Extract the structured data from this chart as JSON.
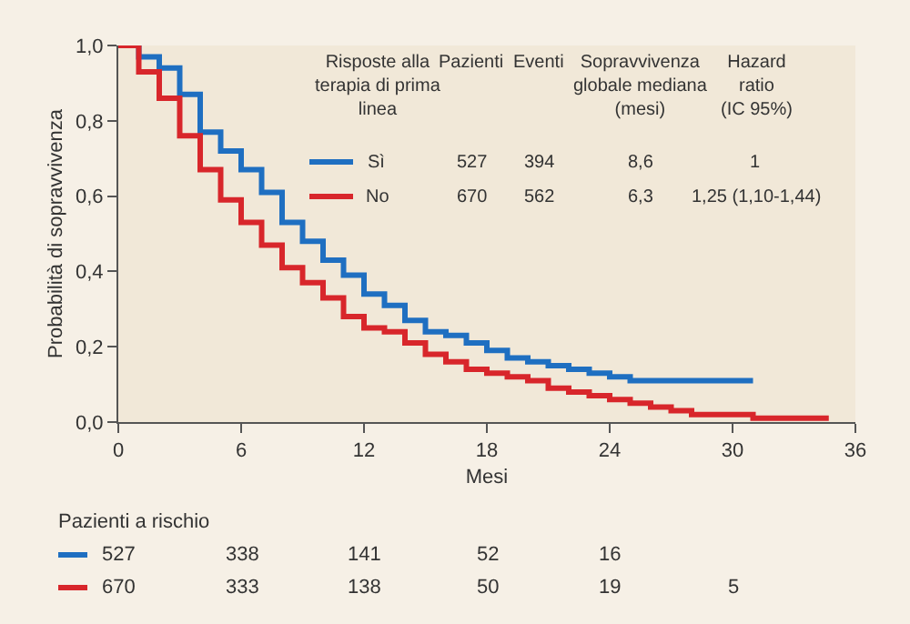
{
  "chart_data": {
    "type": "step",
    "xlabel": "Mesi",
    "ylabel": "Probabilità di sopravvivenza",
    "x": [
      0,
      1,
      2,
      3,
      4,
      5,
      6,
      7,
      8,
      9,
      10,
      11,
      12,
      13,
      14,
      15,
      16,
      17,
      18,
      19,
      20,
      21,
      22,
      23,
      24,
      25,
      26,
      27,
      28,
      30,
      31,
      34.7
    ],
    "series": [
      {
        "name": "Sì",
        "color": "#1f6fc1",
        "values": [
          1.0,
          0.97,
          0.94,
          0.87,
          0.77,
          0.72,
          0.67,
          0.61,
          0.53,
          0.48,
          0.43,
          0.39,
          0.34,
          0.31,
          0.27,
          0.24,
          0.23,
          0.21,
          0.19,
          0.17,
          0.16,
          0.15,
          0.14,
          0.13,
          0.12,
          0.11,
          0.11,
          0.11,
          0.11,
          0.11,
          0.11,
          null
        ]
      },
      {
        "name": "No",
        "color": "#d8262b",
        "values": [
          1.0,
          0.93,
          0.86,
          0.76,
          0.67,
          0.59,
          0.53,
          0.47,
          0.41,
          0.37,
          0.33,
          0.28,
          0.25,
          0.24,
          0.21,
          0.18,
          0.16,
          0.14,
          0.13,
          0.12,
          0.11,
          0.09,
          0.08,
          0.07,
          0.06,
          0.05,
          0.04,
          0.03,
          0.02,
          0.02,
          0.01,
          0.01
        ]
      }
    ],
    "legend": "top",
    "xlim": [
      0,
      36
    ],
    "xticks": [
      0,
      6,
      12,
      18,
      24,
      30,
      36
    ],
    "ylim": [
      0,
      1.0
    ],
    "yticks": [
      {
        "value": 0,
        "label": "0,0"
      },
      {
        "value": 0.2,
        "label": "0,2"
      },
      {
        "value": 0.4,
        "label": "0,4"
      },
      {
        "value": 0.6,
        "label": "0,6"
      },
      {
        "value": 0.8,
        "label": "0,8"
      },
      {
        "value": 1.0,
        "label": "1,0"
      }
    ],
    "annotations": [
      "Risposte alla\nterapia di prima\nlinea",
      "Pazienti",
      "Eventi",
      "Sopravvivenza\nglobale mediana\n(mesi)",
      "Hazard\nratio\n(IC 95%)",
      "527",
      "394",
      "8,6",
      "1",
      "670",
      "562",
      "6,3",
      "1,25 (1,10-1,44)",
      "Pazienti a rischio",
      "527",
      "338",
      "141",
      "52",
      "16",
      "670",
      "333",
      "138",
      "50",
      "19",
      "5"
    ]
  }
}
